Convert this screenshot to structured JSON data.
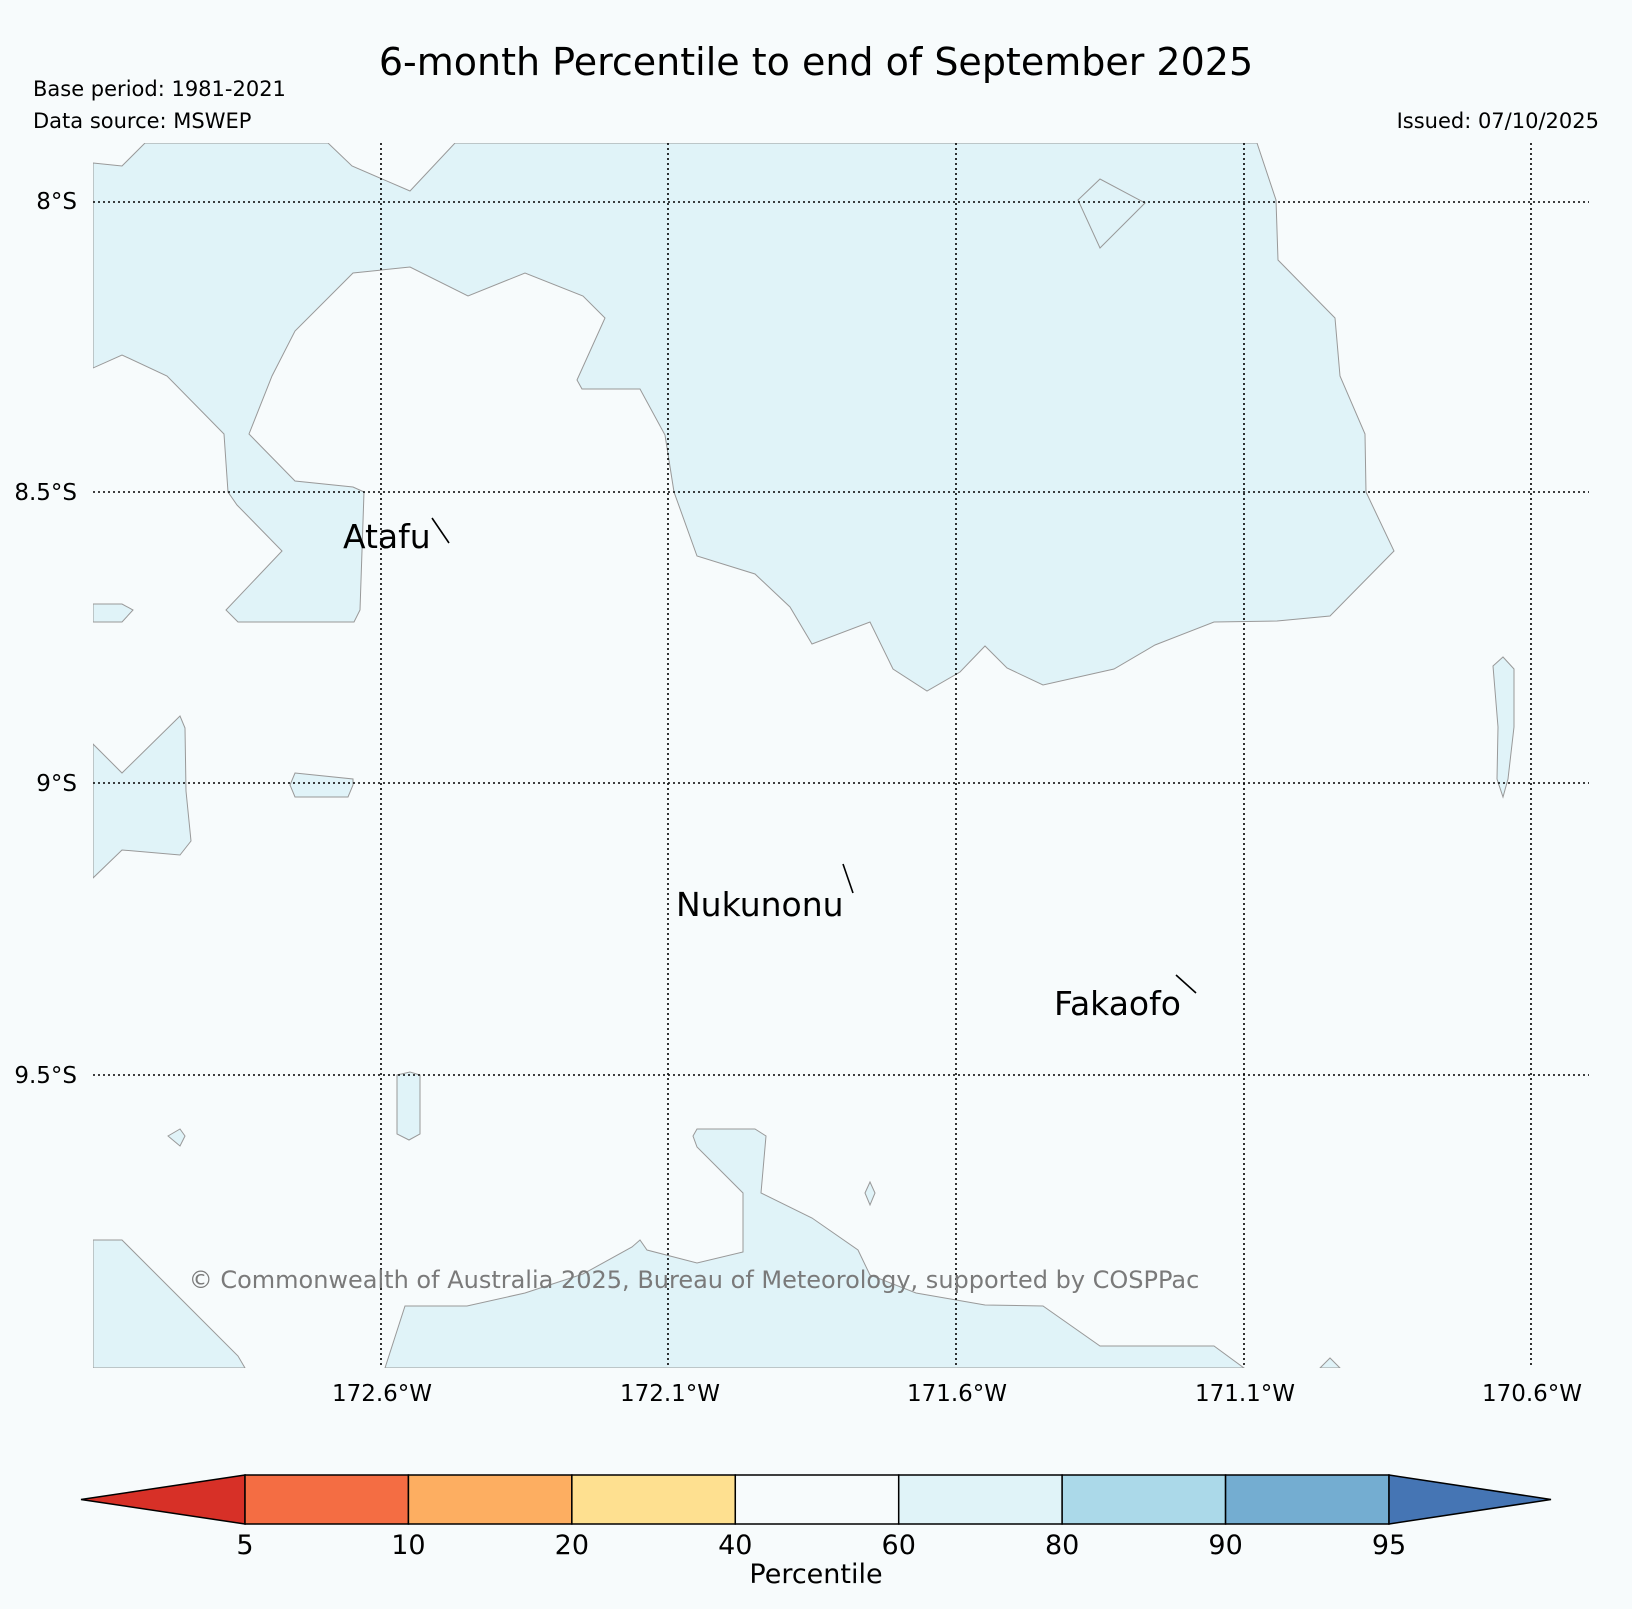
{
  "title": "6-month Percentile to end of September 2025",
  "base_period": "Base period: 1981-2021",
  "data_source": "Data source: MSWEP",
  "issued": "Issued: 07/10/2025",
  "copyright": "© Commonwealth of Australia 2025, Bureau of Meteorology, supported by COSPPac",
  "lat_labels": [
    "8°S",
    "8.5°S",
    "9°S",
    "9.5°S"
  ],
  "lon_labels": [
    "172.6°W",
    "172.1°W",
    "171.6°W",
    "171.1°W",
    "170.6°W"
  ],
  "places": [
    "Atafu",
    "Nukunonu",
    "Fakaofo"
  ],
  "colorbar": {
    "label": "Percentile",
    "ticks": [
      "5",
      "10",
      "20",
      "40",
      "60",
      "80",
      "90",
      "95"
    ],
    "colors": [
      "#d73027",
      "#f46d43",
      "#fdae61",
      "#fee090",
      "#f7fbfc",
      "#e0f3f8",
      "#abd9e9",
      "#74add1",
      "#4575b4"
    ]
  },
  "colors": {
    "background": "#f7fbfc",
    "band_60_80": "#e0f3f8",
    "contour_line": "#999999",
    "copyright_text": "#7a7a7a"
  }
}
